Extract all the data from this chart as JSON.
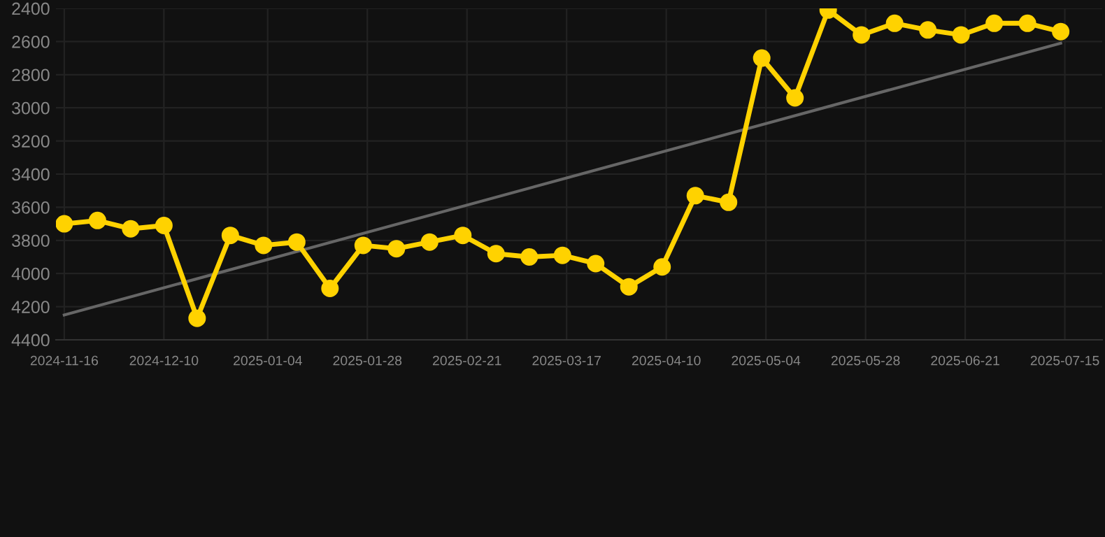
{
  "chart_data": {
    "type": "line",
    "x": [
      "2024-11-16",
      "2024-11-24",
      "2024-12-02",
      "2024-12-10",
      "2024-12-18",
      "2024-12-26",
      "2025-01-03",
      "2025-01-11",
      "2025-01-19",
      "2025-01-27",
      "2025-02-04",
      "2025-02-12",
      "2025-02-20",
      "2025-02-28",
      "2025-03-08",
      "2025-03-16",
      "2025-03-24",
      "2025-04-01",
      "2025-04-09",
      "2025-04-17",
      "2025-04-25",
      "2025-05-03",
      "2025-05-11",
      "2025-05-19",
      "2025-05-27",
      "2025-06-04",
      "2025-06-12",
      "2025-06-20",
      "2025-06-28",
      "2025-07-06",
      "2025-07-14"
    ],
    "series": [
      {
        "color": "#ffd200",
        "marker": "circle",
        "values": [
          3700,
          3680,
          3730,
          3710,
          4270,
          3770,
          3830,
          3810,
          4090,
          3830,
          3850,
          3810,
          3770,
          3880,
          3900,
          3890,
          3940,
          4080,
          3960,
          3530,
          3570,
          2700,
          2940,
          2410,
          2560,
          2490,
          2530,
          2560,
          2490,
          2490,
          2540
        ]
      },
      {
        "color": "#666666",
        "marker": "none",
        "x": [
          "2024-11-16",
          "2025-07-14"
        ],
        "values": [
          4250,
          2610
        ]
      }
    ],
    "ylim": [
      4400,
      2400
    ],
    "yticks": [
      2400,
      2600,
      2800,
      3000,
      3200,
      3400,
      3600,
      3800,
      4000,
      4200,
      4400
    ],
    "xlim": [
      "2024-11-14",
      "2025-07-24"
    ],
    "xticks": [
      "2024-11-16",
      "2024-12-10",
      "2025-01-04",
      "2025-01-28",
      "2025-02-21",
      "2025-03-17",
      "2025-04-10",
      "2025-05-04",
      "2025-05-28",
      "2025-06-21",
      "2025-07-15"
    ],
    "grid": true
  }
}
